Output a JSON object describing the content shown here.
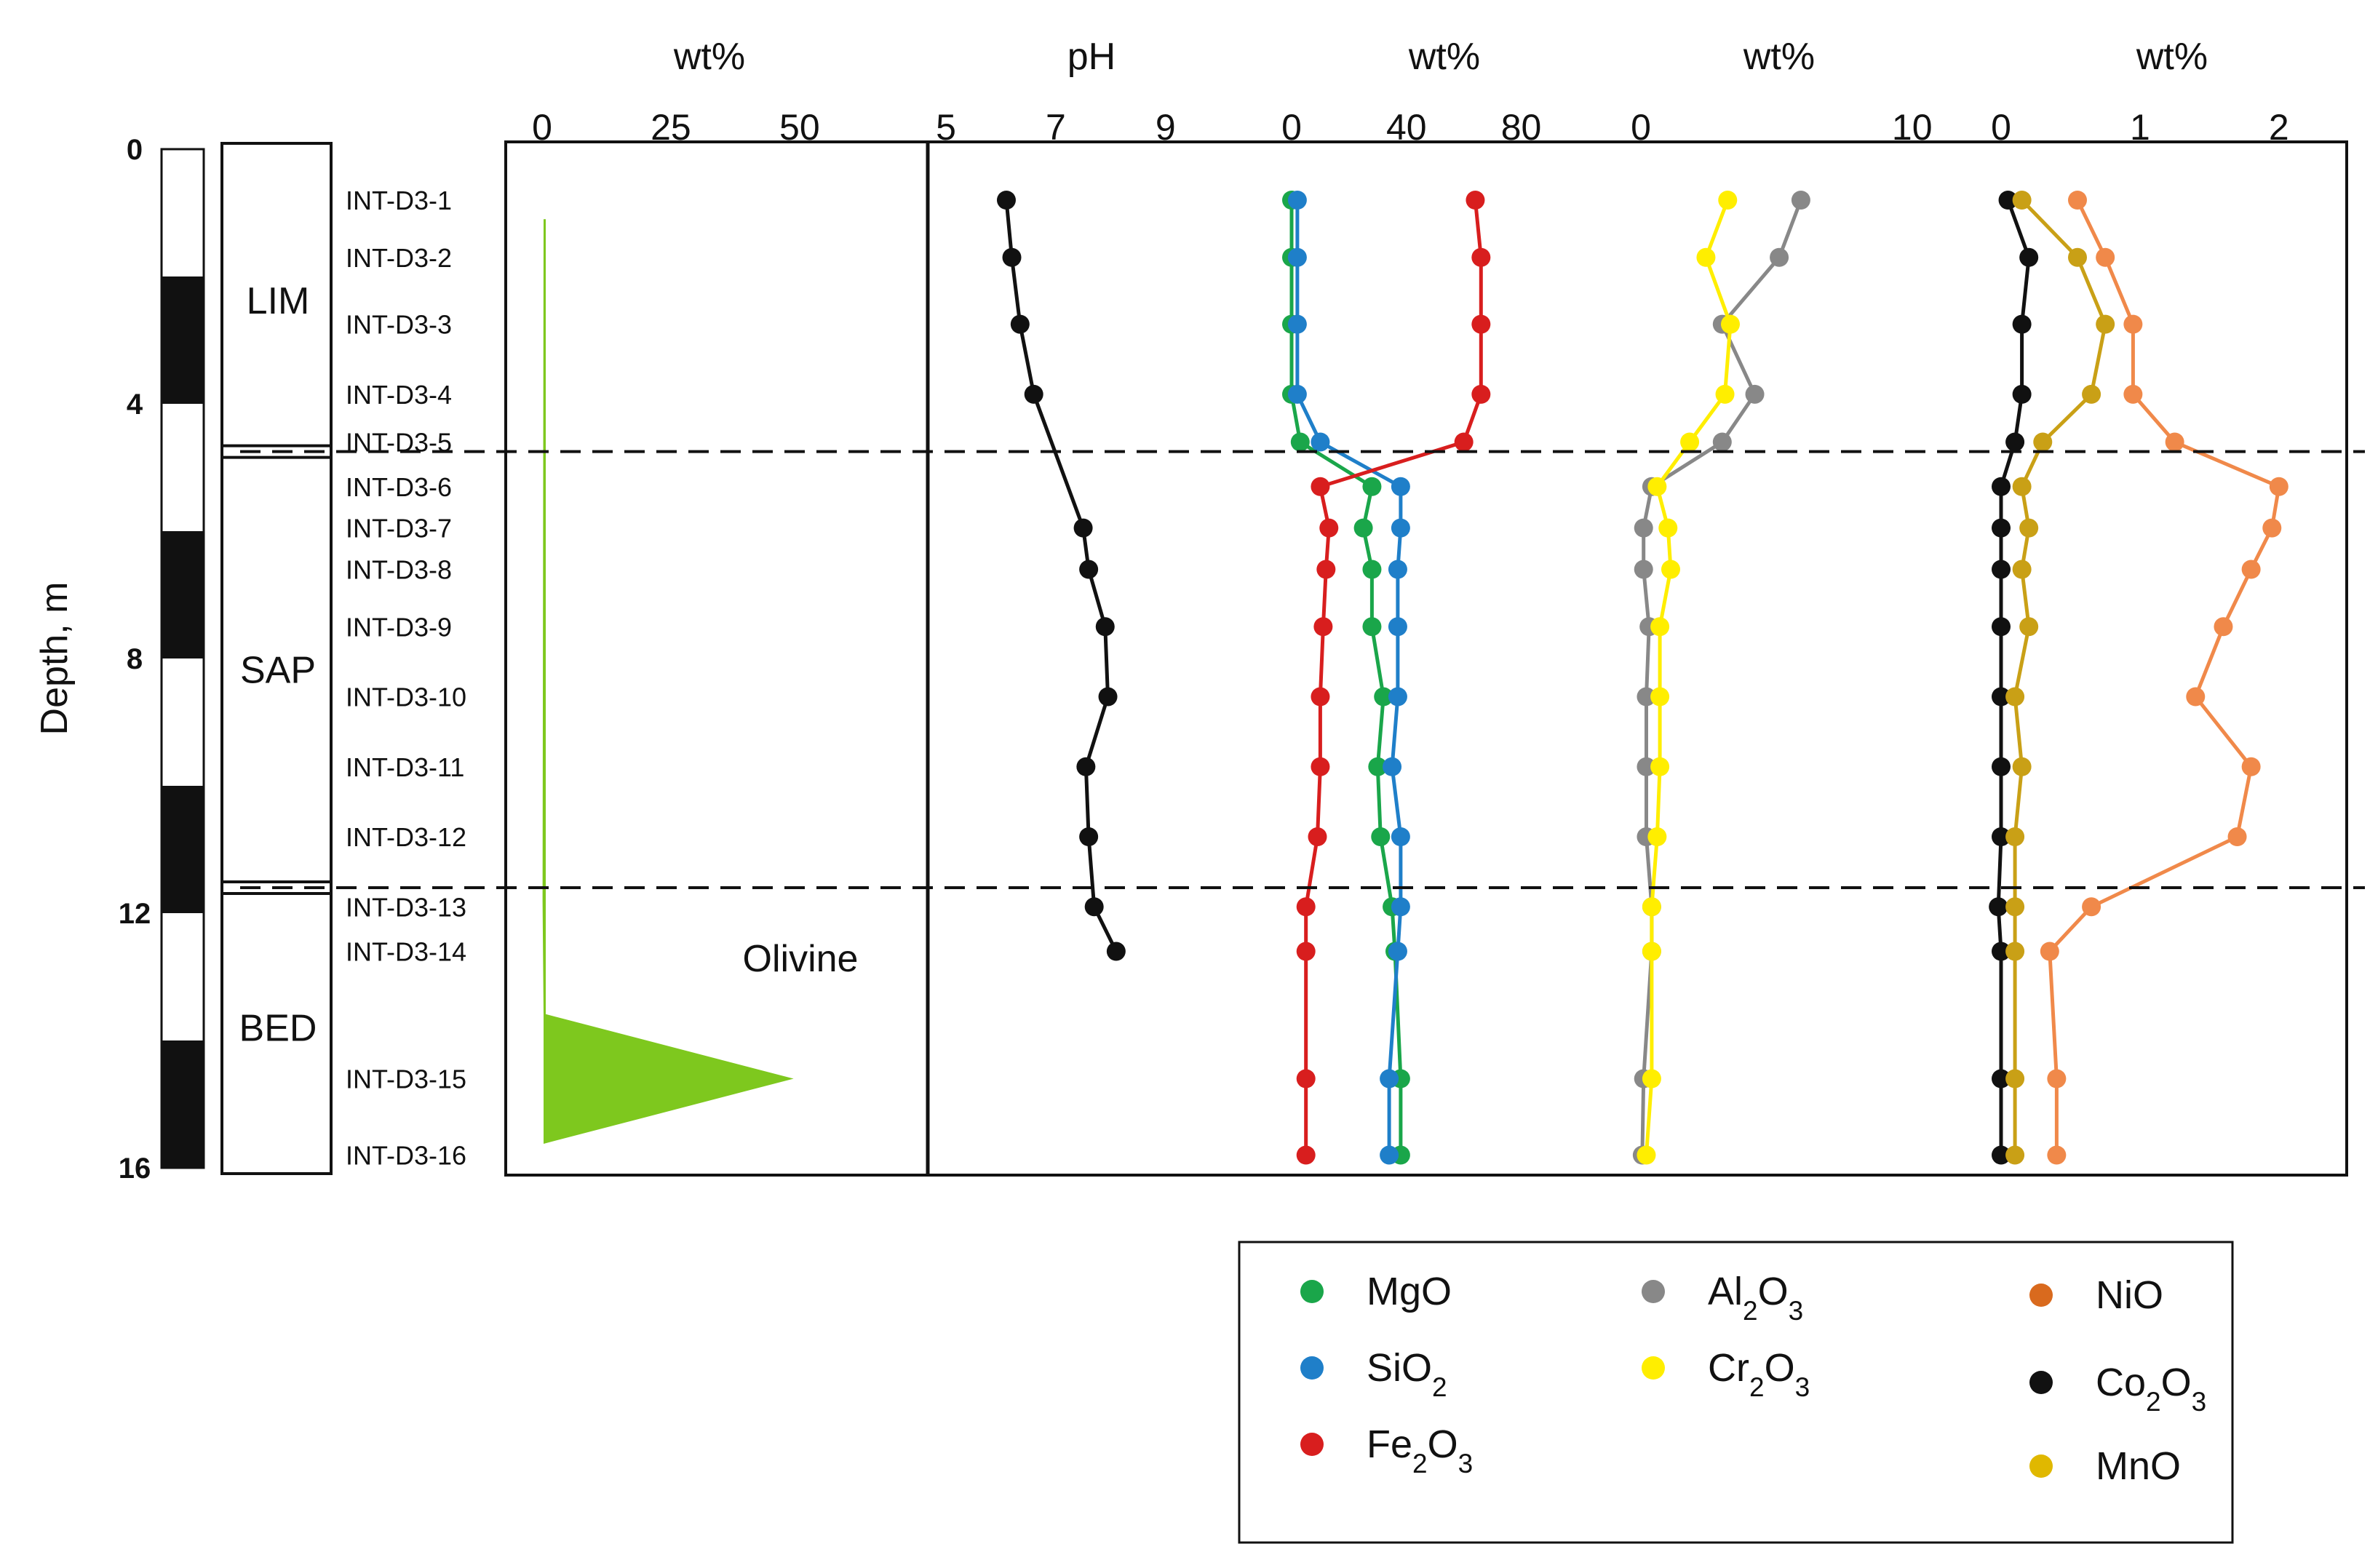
{
  "chart_data": {
    "type": "line",
    "depth_axis": {
      "label": "Depth, m",
      "ticks": [
        "0",
        "4",
        "8",
        "12",
        "16"
      ],
      "range": [
        0,
        16
      ],
      "inverted": true
    },
    "column_strip": {
      "black_intervals": [
        [
          2,
          4
        ],
        [
          6,
          8
        ],
        [
          10,
          12
        ],
        [
          14,
          16
        ]
      ]
    },
    "zones": [
      {
        "label": "LIM",
        "top": 0,
        "bottom": 4.75
      },
      {
        "label": "SAP",
        "top": 4.75,
        "bottom": 11.6
      },
      {
        "label": "BED",
        "top": 11.6,
        "bottom": 16
      }
    ],
    "boundaries": [
      4.75,
      11.6
    ],
    "samples": {
      "labels": [
        "INT-D3-1",
        "INT-D3-2",
        "INT-D3-3",
        "INT-D3-4",
        "INT-D3-5",
        "INT-D3-6",
        "INT-D3-7",
        "INT-D3-8",
        "INT-D3-9",
        "INT-D3-10",
        "INT-D3-11",
        "INT-D3-12",
        "INT-D3-13",
        "INT-D3-14",
        "INT-D3-15",
        "INT-D3-16"
      ],
      "depths": [
        0.8,
        1.7,
        2.75,
        3.85,
        4.6,
        5.3,
        5.95,
        6.6,
        7.5,
        8.6,
        9.7,
        10.8,
        11.9,
        12.6,
        14.6,
        15.8
      ]
    },
    "panels": [
      {
        "unit": "wt%",
        "xlim": [
          0,
          65
        ],
        "ticks": [
          "0",
          "25",
          "50"
        ],
        "series": [
          {
            "name": "Olivine",
            "color": "#7ec81e",
            "type": "area",
            "profile": [
              [
                0.5,
                1.1
              ],
              [
                0.3,
                11.8
              ],
              [
                0.5,
                13.6
              ],
              [
                48,
                14.6
              ],
              [
                0.5,
                15.6
              ]
            ]
          }
        ]
      },
      {
        "unit": "pH",
        "xlim": [
          5,
          10.7
        ],
        "ticks": [
          "5",
          "7",
          "9"
        ],
        "series": [
          {
            "name": "pH",
            "color": "#111111",
            "values": [
              6.1,
              6.2,
              6.35,
              6.6,
              null,
              null,
              7.5,
              7.6,
              7.9,
              7.95,
              7.55,
              7.6,
              7.7,
              8.1,
              null,
              null
            ]
          }
        ]
      },
      {
        "unit": "wt%",
        "xlim": [
          0,
          90
        ],
        "ticks": [
          "0",
          "40",
          "80"
        ],
        "series": [
          {
            "name": "MgO",
            "color": "#1aa64a",
            "values": [
              0,
              0,
              0,
              0,
              3,
              28,
              25,
              28,
              28,
              32,
              30,
              31,
              35,
              36,
              38,
              38
            ]
          },
          {
            "name": "SiO2",
            "color": "#1f7fc9",
            "values": [
              2,
              2,
              2,
              2,
              10,
              38,
              38,
              37,
              37,
              37,
              35,
              38,
              38,
              37,
              34,
              34
            ]
          },
          {
            "name": "Fe2O3",
            "color": "#d81e1e",
            "values": [
              64,
              66,
              66,
              66,
              60,
              10,
              13,
              12,
              11,
              10,
              10,
              9,
              5,
              5,
              5,
              5
            ]
          }
        ]
      },
      {
        "unit": "wt%",
        "xlim": [
          0,
          11
        ],
        "ticks": [
          "0",
          "10"
        ],
        "series": [
          {
            "name": "Al2O3",
            "color": "#888888",
            "values": [
              5.9,
              5.1,
              3.0,
              4.2,
              3.0,
              0.4,
              0.1,
              0.1,
              0.3,
              0.2,
              0.2,
              0.2,
              0.4,
              0.4,
              0.1,
              0.05
            ]
          },
          {
            "name": "Cr2O3",
            "color": "#ffee00",
            "values": [
              3.2,
              2.4,
              3.3,
              3.1,
              1.8,
              0.6,
              1.0,
              1.1,
              0.7,
              0.7,
              0.7,
              0.6,
              0.4,
              0.4,
              0.4,
              0.2
            ]
          }
        ]
      },
      {
        "unit": "wt%",
        "xlim": [
          0,
          2.2
        ],
        "ticks": [
          "0",
          "1",
          "2"
        ],
        "series": [
          {
            "name": "NiO",
            "color": "#f0894a",
            "values": [
              0.55,
              0.75,
              0.95,
              0.95,
              1.25,
              2.0,
              1.95,
              1.8,
              1.6,
              1.4,
              1.8,
              1.7,
              0.65,
              0.35,
              0.4,
              0.4
            ]
          },
          {
            "name": "Co2O3",
            "color": "#111111",
            "values": [
              0.05,
              0.2,
              0.15,
              0.15,
              0.1,
              0.0,
              0.0,
              0.0,
              0.0,
              0.0,
              0.0,
              0.0,
              -0.02,
              0.0,
              0.0,
              0.0
            ]
          },
          {
            "name": "MnO",
            "color": "#c9a016",
            "values": [
              0.15,
              0.55,
              0.75,
              0.65,
              0.3,
              0.15,
              0.2,
              0.15,
              0.2,
              0.1,
              0.15,
              0.1,
              0.1,
              0.1,
              0.1,
              0.1
            ]
          }
        ]
      }
    ],
    "annotations": [
      {
        "text": "Olivine"
      }
    ],
    "legend": {
      "placement": "bottom-right",
      "entries": [
        {
          "name": "MgO",
          "color": "#1aa64a"
        },
        {
          "name": "SiO2",
          "color": "#1f7fc9"
        },
        {
          "name": "Fe2O3",
          "color": "#d81e1e"
        },
        {
          "name": "Al2O3",
          "color": "#888888"
        },
        {
          "name": "Cr2O3",
          "color": "#ffee00"
        },
        {
          "name": "NiO",
          "color": "#d96a1e"
        },
        {
          "name": "Co2O3",
          "color": "#111111"
        },
        {
          "name": "MnO",
          "color": "#e0b800"
        }
      ]
    }
  }
}
